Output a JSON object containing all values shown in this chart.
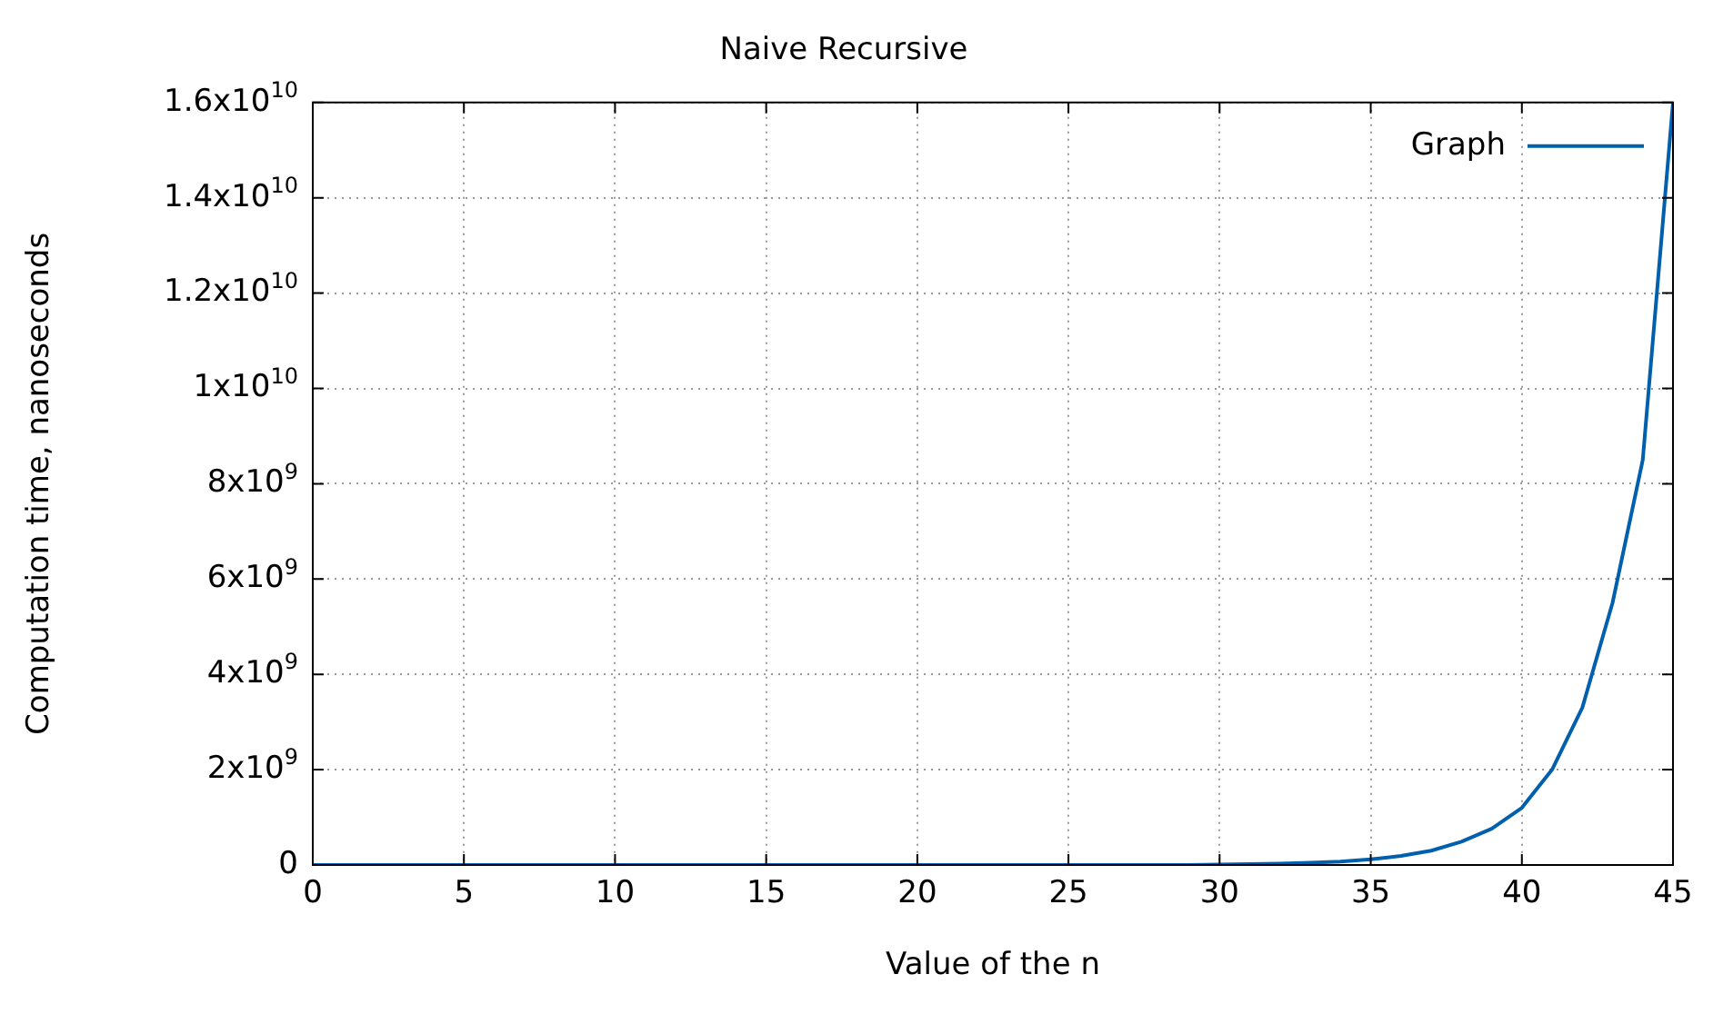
{
  "chart_data": {
    "type": "line",
    "title": "Naive Recursive",
    "xlabel": "Value of the n",
    "ylabel": "Computation time, nanoseconds",
    "x": [
      0,
      1,
      2,
      3,
      4,
      5,
      6,
      7,
      8,
      9,
      10,
      11,
      12,
      13,
      14,
      15,
      16,
      17,
      18,
      19,
      20,
      21,
      22,
      23,
      24,
      25,
      26,
      27,
      28,
      29,
      30,
      31,
      32,
      33,
      34,
      35,
      36,
      37,
      38,
      39,
      40,
      41,
      42,
      43,
      44,
      45
    ],
    "series": [
      {
        "name": "Graph",
        "color": "#0060ad",
        "values": [
          0,
          0,
          0,
          0,
          0,
          0,
          0,
          0,
          0,
          0,
          0,
          0,
          0,
          0,
          0,
          0,
          0,
          0,
          0,
          0,
          0,
          0,
          0,
          0,
          0,
          0,
          0,
          0,
          0,
          0,
          10000000.0,
          20000000.0,
          30000000.0,
          50000000.0,
          70000000.0,
          120000000.0,
          190000000.0,
          300000000.0,
          490000000.0,
          760000000.0,
          1200000000.0,
          2000000000.0,
          3300000000.0,
          5500000000.0,
          8500000000.0,
          16000000000.0
        ]
      }
    ],
    "xlim": [
      0,
      45
    ],
    "xticks": [
      0,
      5,
      10,
      15,
      20,
      25,
      30,
      35,
      40,
      45
    ],
    "ylim": [
      0,
      16000000000.0
    ],
    "yticks": [
      0,
      {
        "value": 2000000000.0,
        "label": "2x10$^{9}$"
      },
      {
        "value": 4000000000.0,
        "label": "4x10$^{9}$"
      },
      {
        "value": 6000000000.0,
        "label": "6x10$^{9}$"
      },
      {
        "value": 8000000000.0,
        "label": "8x10$^{9}$"
      },
      {
        "value": 10000000000.0,
        "label": "1x10$^{10}$"
      },
      {
        "value": 12000000000.0,
        "label": "1.2x10$^{10}$"
      },
      {
        "value": 14000000000.0,
        "label": "1.4x10$^{10}$"
      },
      {
        "value": 16000000000.0,
        "label": "1.6x10$^{10}$"
      }
    ],
    "grid": true,
    "legend": "top right",
    "marker": "none",
    "line_style": "solid"
  }
}
